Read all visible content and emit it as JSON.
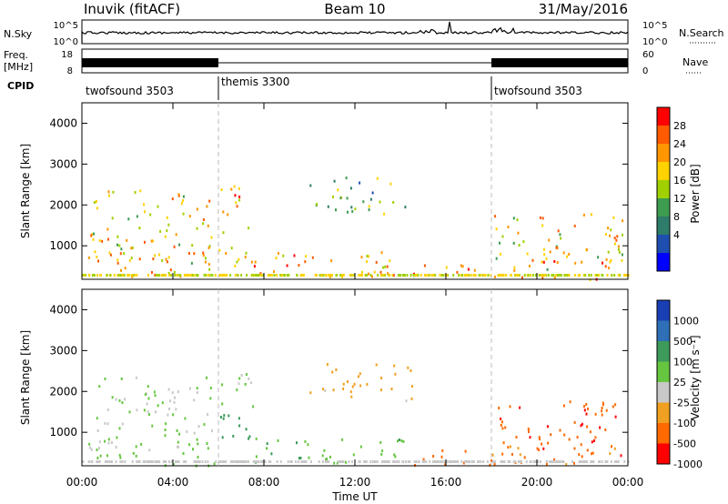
{
  "header": {
    "station": "Inuvik (fitACF)",
    "beam": "Beam 10",
    "date": "31/May/2016"
  },
  "nsky": {
    "label": "N.Sky",
    "right_label": "N.Search",
    "ticks_left": [
      "10^5",
      "10^0"
    ],
    "ticks_right": [
      "10^5",
      "10^0"
    ]
  },
  "freq": {
    "label_top": "Freq.",
    "label_unit": "[MHz]",
    "ticks_left": [
      "18",
      "8"
    ],
    "ticks_right": [
      "60",
      "0"
    ],
    "right_label": "Nave"
  },
  "cpid": {
    "label": "CPID",
    "segments": [
      {
        "name": "twofsound 3503",
        "start_hour": 0,
        "end_hour": 6
      },
      {
        "name": "themis 3300",
        "start_hour": 6,
        "end_hour": 18
      },
      {
        "name": "twofsound 3503",
        "start_hour": 18,
        "end_hour": 24
      }
    ]
  },
  "power_panel": {
    "ylabel": "Slant Range [km]",
    "yticks": [
      "4000",
      "3000",
      "2000",
      "1000"
    ],
    "colorbar_label": "Power [dB]",
    "colorbar_ticks": [
      "28",
      "24",
      "20",
      "16",
      "12",
      "8",
      "4"
    ],
    "colors": [
      "#ff0000",
      "#ff5a00",
      "#ff9600",
      "#ffd200",
      "#a0d000",
      "#3c9c50",
      "#2e7d6a",
      "#1e4fb0",
      "#0000ff"
    ]
  },
  "velocity_panel": {
    "ylabel": "Slant Range [km]",
    "yticks": [
      "4000",
      "3000",
      "2000",
      "1000"
    ],
    "colorbar_label": "Velocity [m s⁻¹]",
    "colorbar_ticks": [
      "1000",
      "500",
      "100",
      "25",
      "-25",
      "-100",
      "-500",
      "-1000"
    ],
    "colors": [
      "#1a3fb5",
      "#2e6fb8",
      "#3c9a5a",
      "#66c640",
      "#c8c8c8",
      "#f0a020",
      "#ff6a00",
      "#ff0000"
    ]
  },
  "xaxis": {
    "label": "Time UT",
    "ticks": [
      "00:00",
      "04:00",
      "08:00",
      "12:00",
      "16:00",
      "20:00",
      "00:00"
    ]
  },
  "chart_data": {
    "type": "heatmap",
    "x_range_hours": [
      0,
      24
    ],
    "y_range_km": [
      180,
      4500
    ],
    "scatter_regions": [
      {
        "t0": 0.2,
        "t1": 5.8,
        "r0": 600,
        "r1": 2400,
        "power": 18,
        "velocity": 25
      },
      {
        "t0": 0.2,
        "t1": 5.8,
        "r0": 200,
        "r1": 900,
        "power": 20,
        "velocity": 60
      },
      {
        "t0": 6.0,
        "t1": 7.5,
        "r0": 1500,
        "r1": 2500,
        "power": 22,
        "velocity": 25
      },
      {
        "t0": 6.0,
        "t1": 7.5,
        "r0": 500,
        "r1": 1500,
        "power": 20,
        "velocity": 150
      },
      {
        "t0": 7.5,
        "t1": 14.5,
        "r0": 250,
        "r1": 900,
        "power": 22,
        "velocity": 80
      },
      {
        "t0": 10.0,
        "t1": 14.5,
        "r0": 1800,
        "r1": 2700,
        "power": 10,
        "velocity": -50
      },
      {
        "t0": 14.5,
        "t1": 18.0,
        "r0": 200,
        "r1": 600,
        "power": 26,
        "velocity": -150
      },
      {
        "t0": 18.0,
        "t1": 23.8,
        "r0": 400,
        "r1": 1800,
        "power": 18,
        "velocity": -400
      },
      {
        "t0": 18.0,
        "t1": 23.8,
        "r0": 200,
        "r1": 700,
        "power": 24,
        "velocity": -120
      }
    ]
  }
}
